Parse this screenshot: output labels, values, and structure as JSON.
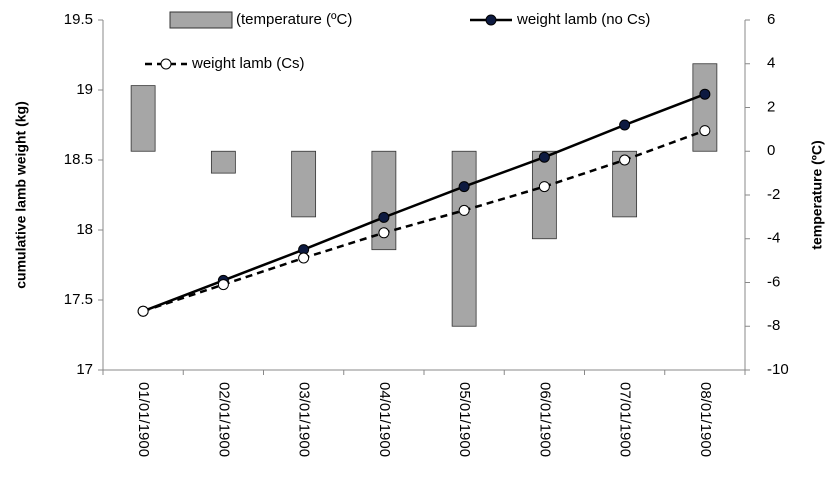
{
  "chart_data": {
    "type": "bar-line",
    "y_label": "cumulative  lamb weight (kg)",
    "y2_label": "temperature (ºC)",
    "categories": [
      "01/01/1900",
      "02/01/1900",
      "03/01/1900",
      "04/01/1900",
      "05/01/1900",
      "06/01/1900",
      "07/01/1900",
      "08/01/1900"
    ],
    "series": [
      {
        "name": "(temperature (ºC)",
        "type": "bar",
        "axis": "y2",
        "color": "#a6a6a6",
        "values": [
          3,
          -1,
          -3,
          -4.5,
          -8,
          -4,
          -3,
          4
        ]
      },
      {
        "name": "weight lamb (no Cs)",
        "type": "line",
        "color": "#000000",
        "marker": "#0d1a40",
        "dashed": false,
        "values": [
          17.42,
          17.64,
          17.86,
          18.09,
          18.31,
          18.52,
          18.75,
          18.97
        ]
      },
      {
        "name": "weight lamb (Cs)",
        "type": "line",
        "color": "#000000",
        "marker": "#ffffff",
        "dashed": true,
        "values": [
          17.42,
          17.61,
          17.8,
          17.98,
          18.14,
          18.31,
          18.5,
          18.71
        ]
      }
    ],
    "ylim": [
      17,
      19.5
    ],
    "yticks": [
      17,
      17.5,
      18,
      18.5,
      19,
      19.5
    ],
    "y2lim": [
      -10,
      6
    ],
    "y2ticks": [
      -10,
      -8,
      -6,
      -4,
      -2,
      0,
      2,
      4,
      6
    ]
  }
}
